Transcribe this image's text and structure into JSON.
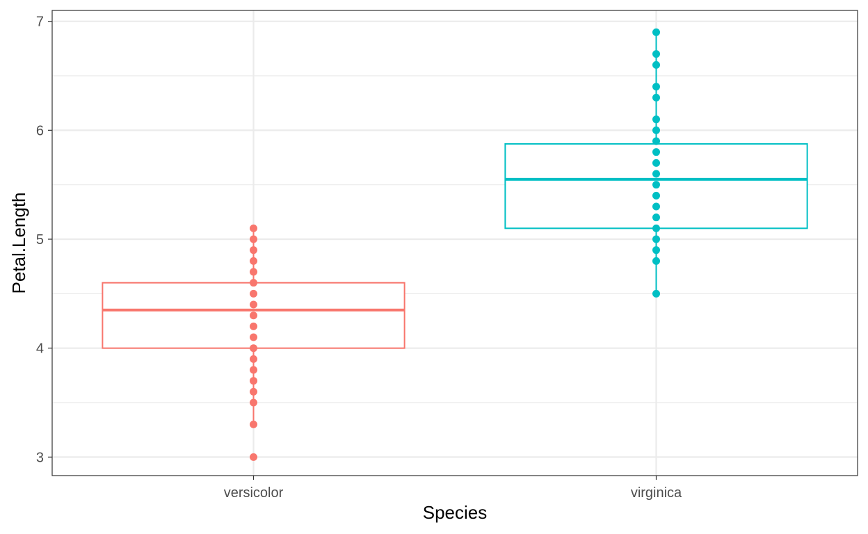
{
  "chart_data": {
    "type": "boxplot",
    "title": "",
    "xlabel": "Species",
    "ylabel": "Petal.Length",
    "ylim": [
      2.83,
      7.1
    ],
    "yticks": [
      3,
      4,
      5,
      6,
      7
    ],
    "grid": true,
    "legend": "none",
    "categories": [
      "versicolor",
      "virginica"
    ],
    "series": [
      {
        "category": "versicolor",
        "color": "#F8766D",
        "box": {
          "q1": 4.0,
          "median": 4.35,
          "q3": 4.6,
          "whisker_low": 3.3,
          "whisker_high": 5.1
        },
        "points": [
          3.0,
          3.3,
          3.5,
          3.6,
          3.7,
          3.8,
          3.9,
          4.0,
          4.1,
          4.2,
          4.3,
          4.4,
          4.5,
          4.6,
          4.7,
          4.8,
          4.9,
          5.0,
          5.1
        ]
      },
      {
        "category": "virginica",
        "color": "#00BFC4",
        "box": {
          "q1": 5.1,
          "median": 5.55,
          "q3": 5.875,
          "whisker_low": 4.5,
          "whisker_high": 6.9
        },
        "points": [
          4.5,
          4.8,
          4.9,
          5.0,
          5.1,
          5.2,
          5.3,
          5.4,
          5.5,
          5.6,
          5.7,
          5.8,
          5.9,
          6.0,
          6.1,
          6.3,
          6.4,
          6.6,
          6.7,
          6.9
        ]
      }
    ]
  }
}
